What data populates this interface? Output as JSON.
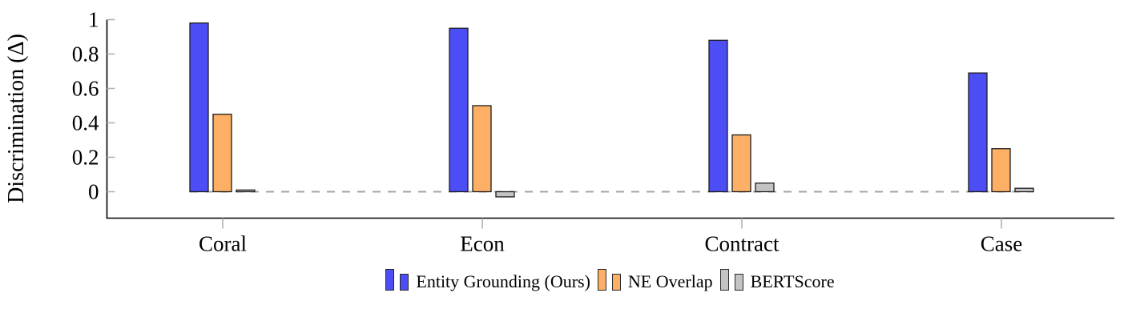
{
  "chart_data": {
    "type": "bar",
    "title": "",
    "xlabel": "",
    "ylabel": "Discrimination (Δ)",
    "categories": [
      "Coral",
      "Econ",
      "Contract",
      "Case"
    ],
    "series": [
      {
        "name": "Entity Grounding (Ours)",
        "color": "#4d4df5",
        "values": [
          0.98,
          0.95,
          0.88,
          0.69
        ]
      },
      {
        "name": "NE Overlap",
        "color": "#fdb065",
        "values": [
          0.45,
          0.5,
          0.33,
          0.25
        ]
      },
      {
        "name": "BERTScore",
        "color": "#c3c3c3",
        "values": [
          0.01,
          -0.03,
          0.05,
          0.02
        ]
      }
    ],
    "yticks": [
      0,
      0.2,
      0.4,
      0.6,
      0.8,
      1
    ],
    "ytick_labels": [
      "0",
      "0.2",
      "0.4",
      "0.6",
      "0.8",
      "1"
    ],
    "ylim": [
      -0.15,
      1.0
    ],
    "grid": false,
    "legend_position": "below",
    "zero_line": {
      "style": "dashed",
      "color": "#a5a5a5"
    },
    "bar_edge_color": "#1d1d1d",
    "axis_color": "#000000",
    "tick_mark_color": "#b3b3b3"
  }
}
